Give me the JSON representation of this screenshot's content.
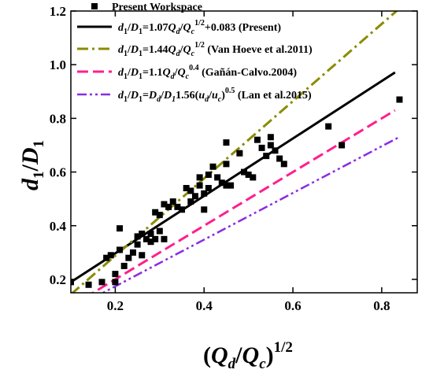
{
  "chart_data": {
    "type": "scatter",
    "xlim": [
      0.1,
      0.88
    ],
    "ylim": [
      0.15,
      1.2
    ],
    "xticks": [
      "0.2",
      "0.4",
      "0.6",
      "0.8"
    ],
    "xtick_values": [
      0.2,
      0.4,
      0.6,
      0.8
    ],
    "yticks": [
      "0.2",
      "0.4",
      "0.6",
      "0.8",
      "1.0",
      "1.2"
    ],
    "ytick_values": [
      0.2,
      0.4,
      0.6,
      0.8,
      1.0,
      1.2
    ],
    "xlabel": "(Q_d/Q_c)^1/2",
    "ylabel": "d_1/D_1",
    "legend_position": "top-left",
    "grid": false,
    "series": [
      {
        "name": "Present Workspace",
        "kind": "scatter",
        "color": "#000000",
        "x": [
          0.1,
          0.14,
          0.17,
          0.18,
          0.19,
          0.2,
          0.2,
          0.21,
          0.21,
          0.22,
          0.23,
          0.24,
          0.25,
          0.25,
          0.26,
          0.26,
          0.27,
          0.28,
          0.28,
          0.29,
          0.29,
          0.3,
          0.3,
          0.31,
          0.31,
          0.32,
          0.33,
          0.34,
          0.35,
          0.36,
          0.37,
          0.37,
          0.38,
          0.39,
          0.39,
          0.4,
          0.4,
          0.41,
          0.41,
          0.42,
          0.43,
          0.44,
          0.45,
          0.45,
          0.45,
          0.46,
          0.48,
          0.49,
          0.5,
          0.51,
          0.52,
          0.53,
          0.54,
          0.55,
          0.55,
          0.56,
          0.57,
          0.58,
          0.68,
          0.71,
          0.84
        ],
        "y": [
          0.19,
          0.18,
          0.19,
          0.28,
          0.29,
          0.19,
          0.22,
          0.31,
          0.39,
          0.25,
          0.28,
          0.3,
          0.33,
          0.36,
          0.29,
          0.37,
          0.35,
          0.34,
          0.37,
          0.35,
          0.45,
          0.38,
          0.44,
          0.35,
          0.48,
          0.47,
          0.49,
          0.47,
          0.46,
          0.54,
          0.49,
          0.53,
          0.51,
          0.55,
          0.58,
          0.46,
          0.52,
          0.59,
          0.54,
          0.62,
          0.58,
          0.56,
          0.55,
          0.63,
          0.71,
          0.55,
          0.67,
          0.6,
          0.59,
          0.58,
          0.72,
          0.69,
          0.66,
          0.7,
          0.73,
          0.68,
          0.65,
          0.63,
          0.77,
          0.7,
          0.87
        ]
      },
      {
        "name": "d1/D1=1.07Qd/Qc1/2+0.083 (Present)",
        "kind": "line",
        "color": "#000000",
        "dash": "",
        "width": 3,
        "slope": 1.07,
        "intercept": 0.083,
        "x_range": [
          0.1,
          0.83
        ]
      },
      {
        "name": "d1/D1=1.44Qd/Qc1/2 (Van Hoeve et al.2011)",
        "kind": "line",
        "color": "#8b8b00",
        "dash": "14 5 3 5",
        "width": 3,
        "slope": 1.44,
        "intercept": 0,
        "x_range": [
          0.1,
          0.88
        ]
      },
      {
        "name": "d1/D1=1.1Qd/Qc0.4 (Gañán-Calvo.2004)",
        "kind": "line",
        "color": "#ff1f8e",
        "dash": "14 6",
        "width": 3,
        "slope": 1.0,
        "intercept": 0.0,
        "x_range": [
          0.1,
          0.83
        ]
      },
      {
        "name": "d1/D1=Dd/D11.56(ud/uc)0.5 (Lan et al.2015)",
        "kind": "line",
        "color": "#8a2be2",
        "dash": "12 4 3 4 3 4",
        "width": 2.5,
        "slope": 0.87,
        "intercept": 0.0,
        "x_range": [
          0.1,
          0.84
        ]
      }
    ]
  },
  "axis_text": {
    "y_d": "d",
    "y_d_sub": "1",
    "y_slash": "/",
    "y_D": "D",
    "y_D_sub": "1",
    "x_open": "(",
    "x_Q1": "Q",
    "x_d": "d",
    "x_slash": "/",
    "x_Q2": "Q",
    "x_c": "c",
    "x_close": ")",
    "x_exp": "1/2"
  },
  "legend": {
    "scatter_label": "Present Workspace",
    "present": {
      "a": "d",
      "a_sub": "1",
      "b": "/",
      "c": "D",
      "c_sub": "1",
      "eq": "=1.07",
      "q1": "Q",
      "q1_sub": "d",
      "sl": "/",
      "q2": "Q",
      "q2_sub": "c",
      "exp": "1/2",
      "tail": "+0.083 (Present)"
    },
    "vanhoeve": {
      "a": "d",
      "a_sub": "1",
      "b": "/",
      "c": "D",
      "c_sub": "1",
      "eq": "=1.44",
      "q1": "Q",
      "q1_sub": "d",
      "sl": "/",
      "q2": "Q",
      "q2_sub": "c",
      "exp": "1/2",
      "tail": " (Van Hoeve et al.2011)"
    },
    "ganan": {
      "a": "d",
      "a_sub": "1",
      "b": "/",
      "c": "D",
      "c_sub": "1",
      "eq": "=1.1",
      "q1": "Q",
      "q1_sub": "d",
      "sl": "/",
      "q2": "Q",
      "q2_sub": "c",
      "exp": "0.4",
      "tail": " (Gañán-Calvo.2004)"
    },
    "lan": {
      "a": "d",
      "a_sub": "1",
      "b": "/",
      "c": "D",
      "c_sub": "1",
      "eq": "=",
      "q1": "D",
      "q1_sub": "d",
      "sl": "/",
      "q2": "D",
      "q2_sub": "1",
      "mid": "1.56(",
      "u1": "u",
      "u1_sub": "d",
      "sl2": "/",
      "u2": "u",
      "u2_sub": "c",
      "close": ")",
      "exp": "0.5",
      "tail": " (Lan et al.2015)"
    }
  }
}
